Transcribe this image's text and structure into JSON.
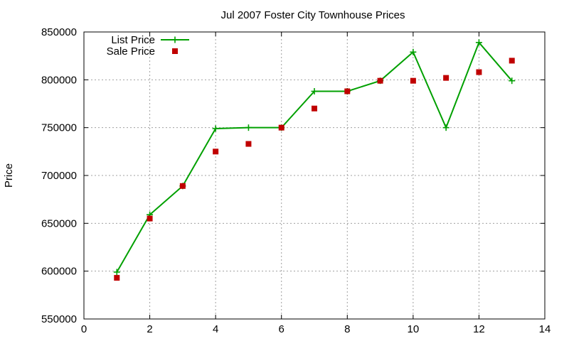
{
  "chart_data": {
    "type": "line",
    "title": "Jul 2007 Foster City Townhouse Prices",
    "xlabel": "",
    "ylabel": "Price",
    "xlim": [
      0,
      14
    ],
    "ylim": [
      550000,
      850000
    ],
    "xticks": [
      "0",
      "2",
      "4",
      "6",
      "8",
      "10",
      "12",
      "14"
    ],
    "yticks": [
      "550000",
      "600000",
      "650000",
      "700000",
      "750000",
      "800000",
      "850000"
    ],
    "grid": true,
    "legend_position": "top-left",
    "series": [
      {
        "name": "List Price",
        "style": "line+points",
        "marker": "plus",
        "color": "#00a000",
        "x": [
          1,
          2,
          3,
          4,
          5,
          6,
          7,
          8,
          9,
          10,
          11,
          12,
          13
        ],
        "values": [
          599000,
          659000,
          689000,
          749000,
          750000,
          750000,
          788000,
          788000,
          799000,
          829000,
          750000,
          839000,
          799000
        ]
      },
      {
        "name": "Sale Price",
        "style": "points",
        "marker": "square",
        "color": "#c00000",
        "x": [
          1,
          2,
          3,
          4,
          5,
          6,
          7,
          8,
          9,
          10,
          11,
          12,
          13
        ],
        "values": [
          593000,
          655000,
          689000,
          725000,
          733000,
          750000,
          770000,
          788000,
          799000,
          799000,
          802000,
          808000,
          820000
        ]
      }
    ]
  }
}
